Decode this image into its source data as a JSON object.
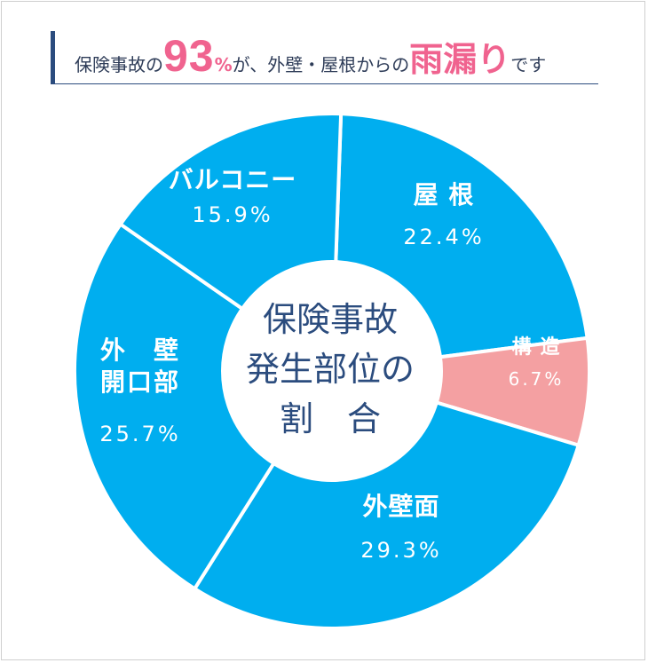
{
  "headline": {
    "part1": "保険事故の",
    "big_number": "93",
    "percent": "%",
    "part2": "が、外壁・屋根からの",
    "highlight": "雨漏り",
    "part3": "です"
  },
  "chart_data": {
    "type": "pie",
    "center_label": [
      "保険事故",
      "発生部位の",
      "割　合"
    ],
    "slices": [
      {
        "name": "屋 根",
        "label_lines": [
          "屋 根"
        ],
        "value": 22.4,
        "value_label": "22.4%",
        "color": "#00aeef"
      },
      {
        "name": "構造",
        "label_lines": [
          "構 造"
        ],
        "value": 6.7,
        "value_label": "6.7%",
        "color": "#f4a0a2"
      },
      {
        "name": "外壁面",
        "label_lines": [
          "外壁面"
        ],
        "value": 29.3,
        "value_label": "29.3%",
        "color": "#00aeef"
      },
      {
        "name": "外壁開口部",
        "label_lines": [
          "外　壁",
          "開口部"
        ],
        "value": 25.7,
        "value_label": "25.7%",
        "color": "#00aeef"
      },
      {
        "name": "バルコニー",
        "label_lines": [
          "バルコニー"
        ],
        "value": 15.9,
        "value_label": "15.9%",
        "color": "#00aeef"
      }
    ]
  },
  "colors": {
    "primary_slice": "#00aeef",
    "accent_slice": "#f4a0a2",
    "headline_text": "#2e3c58",
    "headline_accent": "#f0638f",
    "center_text": "#2b4c7e",
    "separator": "#ffffff"
  }
}
